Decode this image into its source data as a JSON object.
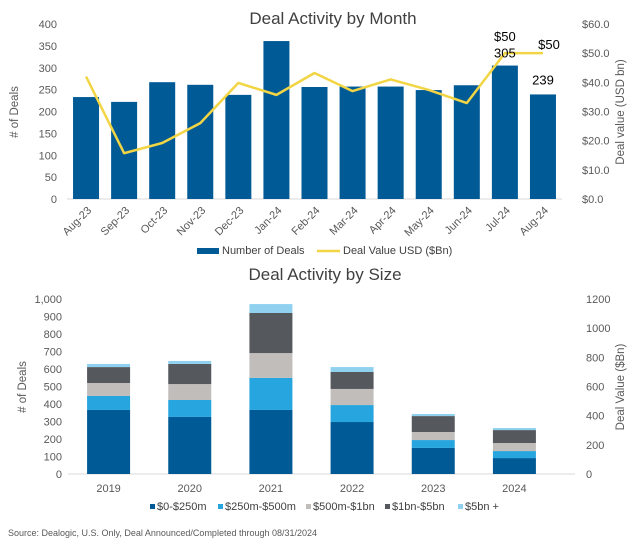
{
  "chart_data": [
    {
      "type": "bar",
      "combo": "bar+line",
      "title": "Deal Activity by Month",
      "categories": [
        "Aug-23",
        "Sep-23",
        "Oct-23",
        "Nov-23",
        "Dec-23",
        "Jan-24",
        "Feb-24",
        "Mar-24",
        "Apr-24",
        "May-24",
        "Jun-24",
        "Jul-24",
        "Aug-24"
      ],
      "series": [
        {
          "name": "Number of Deals",
          "type": "bar",
          "axis": "left",
          "color": "#005a96",
          "values": [
            233,
            222,
            267,
            261,
            238,
            361,
            256,
            257,
            257,
            249,
            260,
            305,
            239
          ]
        },
        {
          "name": "Deal Value USD ($Bn)",
          "type": "line",
          "axis": "right",
          "color": "#f2d544",
          "values": [
            42,
            15.7,
            19.2,
            26,
            39.8,
            35.7,
            43.2,
            37,
            41,
            37.4,
            32.9,
            50,
            50
          ]
        }
      ],
      "data_labels": [
        {
          "series": 1,
          "index": 11,
          "text": "$50"
        },
        {
          "series": 0,
          "index": 11,
          "text": "305"
        },
        {
          "series": 1,
          "index": 12,
          "text": "$50"
        },
        {
          "series": 0,
          "index": 12,
          "text": "239"
        }
      ],
      "ylabel": "# of Deals",
      "ylim": [
        0,
        400
      ],
      "yticks": [
        "0",
        "50",
        "100",
        "150",
        "200",
        "250",
        "300",
        "350",
        "400"
      ],
      "y2label": "Deal value (USD bn)",
      "y2lim": [
        0,
        60
      ],
      "y2ticks": [
        "$0.0",
        "$10.0",
        "$20.0",
        "$30.0",
        "$40.0",
        "$50.0",
        "$60.0"
      ],
      "legend": "bottom",
      "grid": false
    },
    {
      "type": "bar",
      "stacked": true,
      "title": "Deal Activity by Size",
      "categories": [
        "2019",
        "2020",
        "2021",
        "2022",
        "2023",
        "2024"
      ],
      "series": [
        {
          "name": "$0-$250m",
          "color": "#005a96",
          "values": [
            366,
            326,
            366,
            297,
            149,
            91
          ]
        },
        {
          "name": "$250m-$500m",
          "color": "#26a5de",
          "values": [
            80,
            97,
            183,
            97,
            45,
            40
          ]
        },
        {
          "name": "$500m-$1bn",
          "color": "#c0bdbb",
          "values": [
            74,
            91,
            142,
            92,
            46,
            46
          ]
        },
        {
          "name": "$1bn-$5bn",
          "color": "#55595e",
          "values": [
            91,
            115,
            229,
            97,
            91,
            74
          ]
        },
        {
          "name": "$5bn +",
          "color": "#8fd1ef",
          "values": [
            18,
            17,
            51,
            28,
            12,
            12
          ]
        }
      ],
      "ylabel": "# of Deals",
      "ylim": [
        0,
        1000
      ],
      "yticks": [
        "0",
        "100",
        "200",
        "300",
        "400",
        "500",
        "600",
        "700",
        "800",
        "900",
        "1,000"
      ],
      "y2label": "Deal Value ($Bn)",
      "y2lim": [
        0,
        1200
      ],
      "y2ticks": [
        "0",
        "200",
        "400",
        "600",
        "800",
        "1000",
        "1200"
      ],
      "legend": "bottom",
      "grid": false
    }
  ],
  "source_note": "Source: Dealogic, U.S. Only, Deal Announced/Completed through 08/31/2024"
}
